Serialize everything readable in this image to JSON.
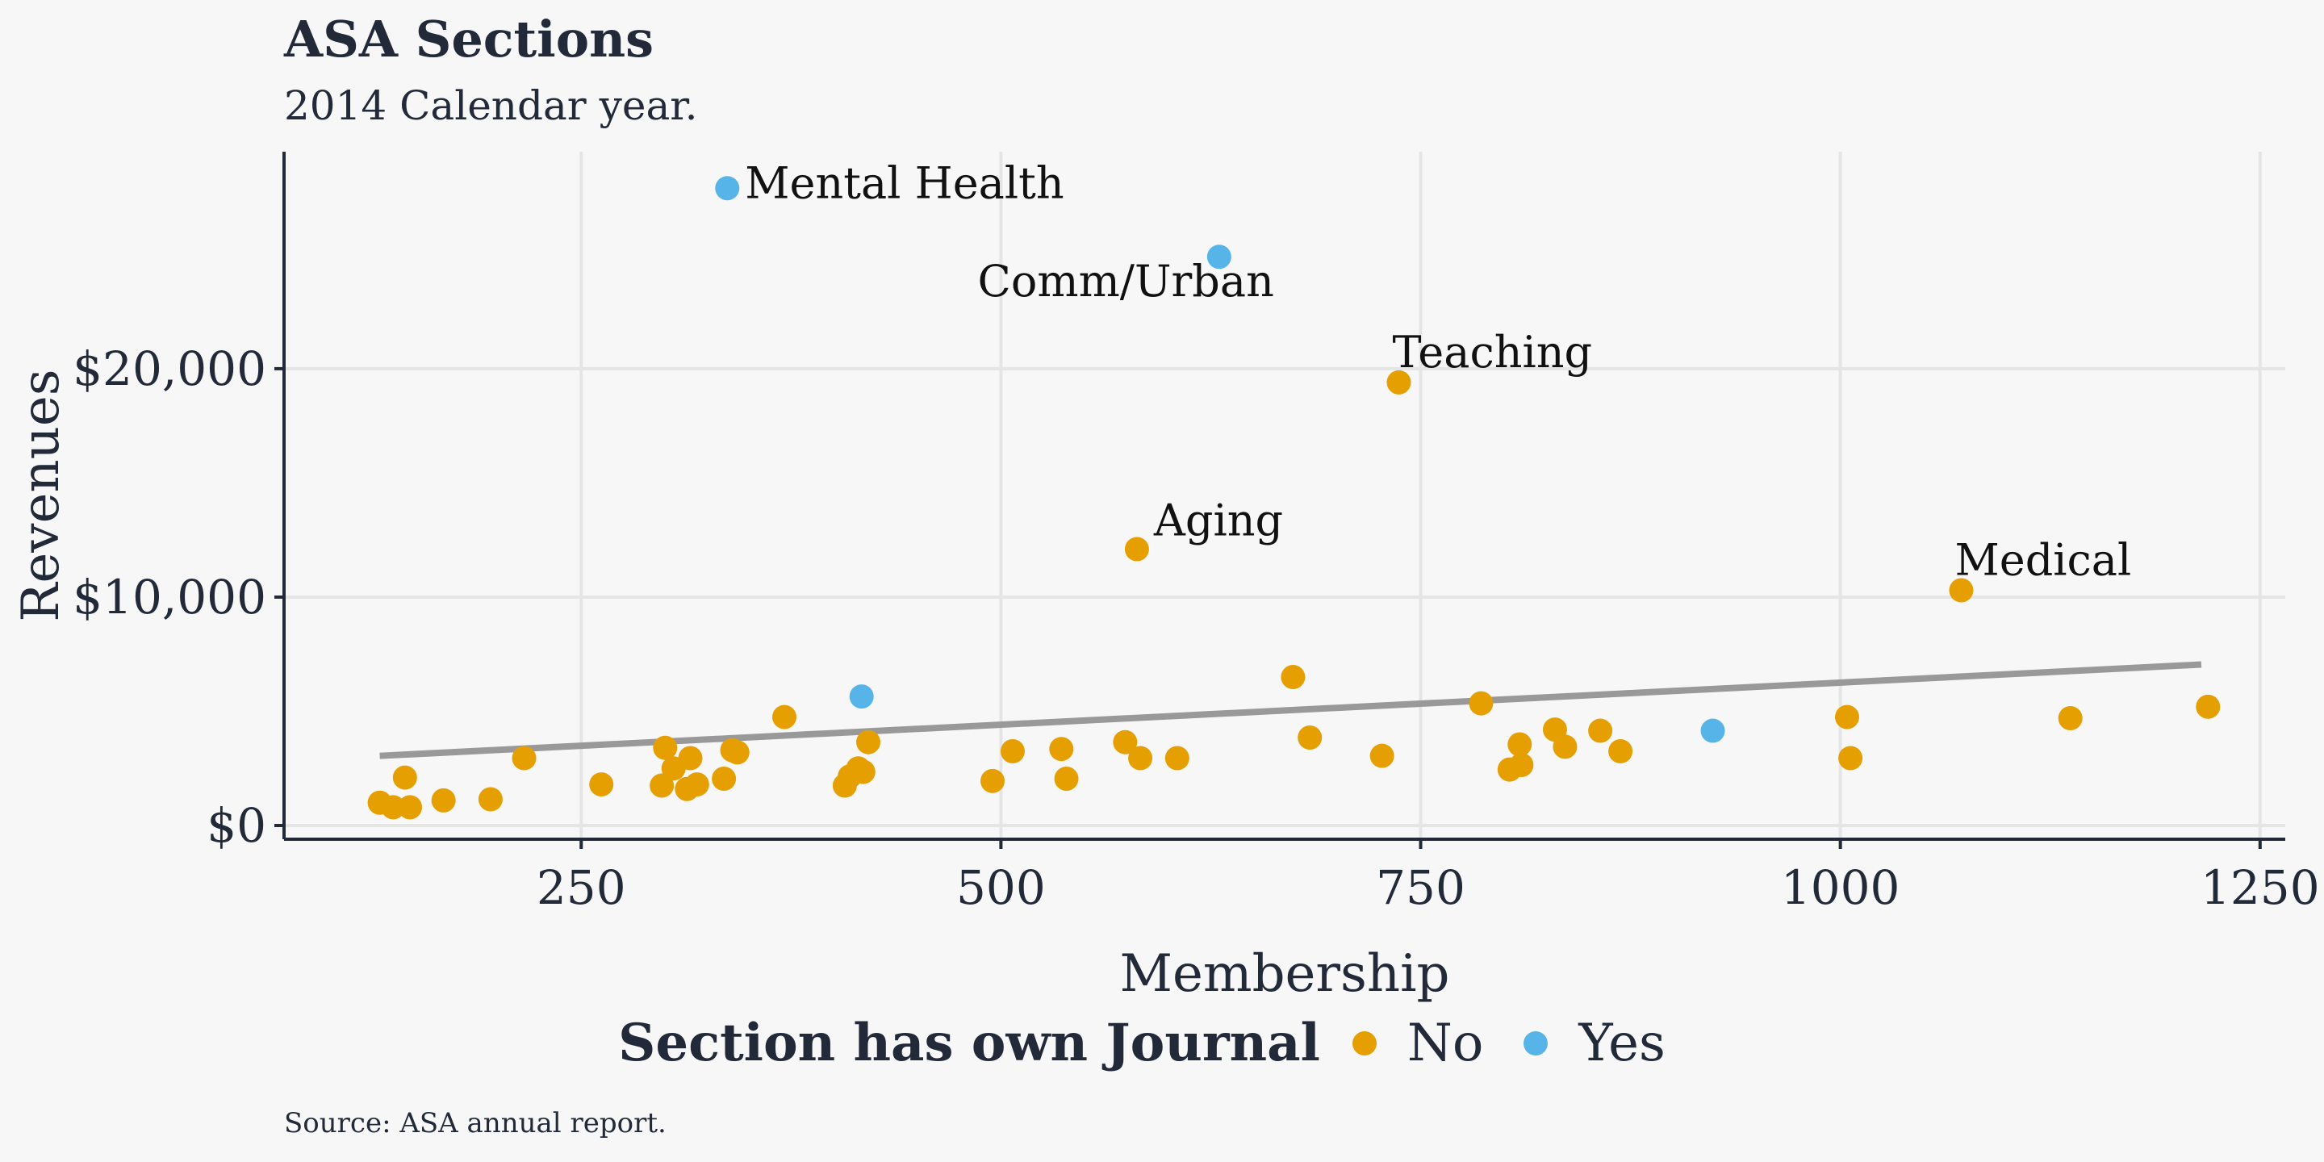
{
  "title": "ASA Sections",
  "subtitle": "2014 Calendar year.",
  "caption": "Source: ASA annual report.",
  "colors": {
    "No": "#E69F00",
    "Yes": "#56B4E9",
    "trend": "#999999",
    "axis": "#222a3a",
    "grid": "#e5e5e5"
  },
  "legend": {
    "title": "Section has own Journal",
    "items": [
      {
        "label": "No",
        "color": "#E69F00"
      },
      {
        "label": "Yes",
        "color": "#56B4E9"
      }
    ]
  },
  "chart_data": {
    "type": "scatter",
    "xlabel": "Membership",
    "ylabel": "Revenues",
    "xlim": [
      73,
      1265
    ],
    "ylim": [
      -600,
      29500
    ],
    "xticks": [
      250,
      500,
      750,
      1000,
      1250
    ],
    "xtick_labels": [
      "250",
      "500",
      "750",
      "1000",
      "1250"
    ],
    "yticks": [
      0,
      10000,
      20000
    ],
    "ytick_labels": [
      "$0",
      "$10,000",
      "$20,000"
    ],
    "grid": true,
    "legend_position": "bottom",
    "trend_line": {
      "x": [
        130,
        1215
      ],
      "y": [
        3050,
        7050
      ]
    },
    "series": [
      {
        "name": "No",
        "color": "#E69F00",
        "points": [
          [
            130,
            1000
          ],
          [
            138,
            800
          ],
          [
            145,
            2100
          ],
          [
            148,
            800
          ],
          [
            168,
            1100
          ],
          [
            196,
            1150
          ],
          [
            216,
            2950
          ],
          [
            262,
            1800
          ],
          [
            298,
            1750
          ],
          [
            300,
            3400
          ],
          [
            305,
            2500
          ],
          [
            313,
            1600
          ],
          [
            315,
            2950
          ],
          [
            319,
            1800
          ],
          [
            335,
            2050
          ],
          [
            340,
            3300
          ],
          [
            343,
            3200
          ],
          [
            371,
            4750
          ],
          [
            407,
            1750
          ],
          [
            410,
            2150
          ],
          [
            415,
            2500
          ],
          [
            418,
            2350
          ],
          [
            421,
            3650
          ],
          [
            495,
            1950
          ],
          [
            507,
            3250
          ],
          [
            536,
            3350
          ],
          [
            539,
            2050
          ],
          [
            574,
            3650
          ],
          [
            581,
            12100
          ],
          [
            583,
            2950
          ],
          [
            605,
            2950
          ],
          [
            674,
            6500
          ],
          [
            684,
            3850
          ],
          [
            727,
            3050
          ],
          [
            737,
            19400
          ],
          [
            786,
            5350
          ],
          [
            803,
            2450
          ],
          [
            809,
            3550
          ],
          [
            810,
            2650
          ],
          [
            830,
            4200
          ],
          [
            836,
            3450
          ],
          [
            857,
            4150
          ],
          [
            869,
            3250
          ],
          [
            1004,
            4750
          ],
          [
            1006,
            2950
          ],
          [
            1072,
            10300
          ],
          [
            1137,
            4700
          ],
          [
            1219,
            5200
          ]
        ]
      },
      {
        "name": "Yes",
        "color": "#56B4E9",
        "points": [
          [
            337,
            27900
          ],
          [
            417,
            5650
          ],
          [
            630,
            24900
          ],
          [
            924,
            4150
          ]
        ]
      }
    ],
    "annotations": [
      {
        "label": "Mental Health",
        "x": 337,
        "y": 27900,
        "anchor": "right"
      },
      {
        "label": "Comm/Urban",
        "x": 630,
        "y": 24900,
        "anchor": "below-left"
      },
      {
        "label": "Teaching",
        "x": 737,
        "y": 19400,
        "anchor": "above"
      },
      {
        "label": "Aging",
        "x": 581,
        "y": 12100,
        "anchor": "above-right"
      },
      {
        "label": "Medical",
        "x": 1072,
        "y": 10300,
        "anchor": "above"
      }
    ]
  }
}
